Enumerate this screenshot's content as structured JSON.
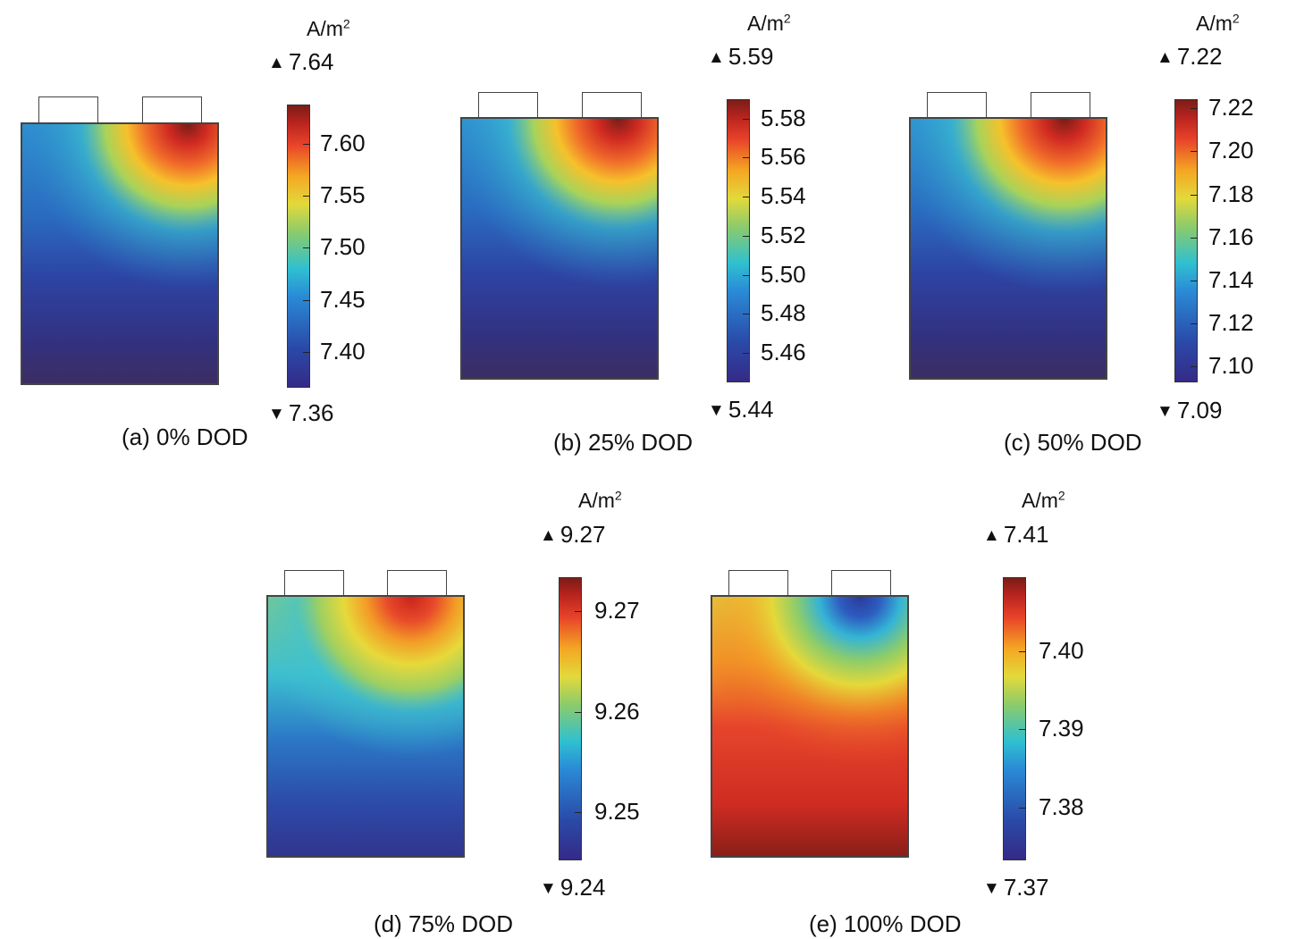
{
  "chart_data": [
    {
      "type": "heatmap",
      "title": "(a) 0% DOD",
      "unit": "A/m²",
      "max_marker": "7.64",
      "min_marker": "7.36",
      "range": [
        7.36,
        7.64
      ],
      "colorbar_ticks": [
        "7.60",
        "7.55",
        "7.50",
        "7.45",
        "7.40"
      ],
      "hotspot": "top-right tab (high)"
    },
    {
      "type": "heatmap",
      "title": "(b) 25% DOD",
      "unit": "A/m²",
      "max_marker": "5.59",
      "min_marker": "5.44",
      "range": [
        5.44,
        5.59
      ],
      "colorbar_ticks": [
        "5.58",
        "5.56",
        "5.54",
        "5.52",
        "5.50",
        "5.48",
        "5.46"
      ],
      "hotspot": "top-right tab (high)"
    },
    {
      "type": "heatmap",
      "title": "(c) 50% DOD",
      "unit": "A/m²",
      "max_marker": "7.22",
      "min_marker": "7.09",
      "range": [
        7.09,
        7.22
      ],
      "colorbar_ticks": [
        "7.22",
        "7.20",
        "7.18",
        "7.16",
        "7.14",
        "7.12",
        "7.10"
      ],
      "hotspot": "top-right tab (high)"
    },
    {
      "type": "heatmap",
      "title": "(d) 75% DOD",
      "unit": "A/m²",
      "max_marker": "9.27",
      "min_marker": "9.24",
      "range": [
        9.24,
        9.27
      ],
      "colorbar_ticks": [
        "9.27",
        "9.26",
        "9.25"
      ],
      "hotspot": "top-right tab (high)"
    },
    {
      "type": "heatmap",
      "title": "(e) 100% DOD",
      "unit": "A/m²",
      "max_marker": "7.41",
      "min_marker": "7.37",
      "range": [
        7.37,
        7.41
      ],
      "colorbar_ticks": [
        "7.40",
        "7.39",
        "7.38"
      ],
      "hotspot": "top-right tab (low), bottom (high)"
    }
  ],
  "colors": {
    "dark_blue": "#352a87",
    "blue": "#2a4aa8",
    "cyan": "#2fc0d0",
    "green": "#8ccb6b",
    "yellow": "#e3d93b",
    "orange": "#f4a623",
    "red": "#e8432a",
    "dark_red": "#7a1d17",
    "frame": "#444444"
  }
}
